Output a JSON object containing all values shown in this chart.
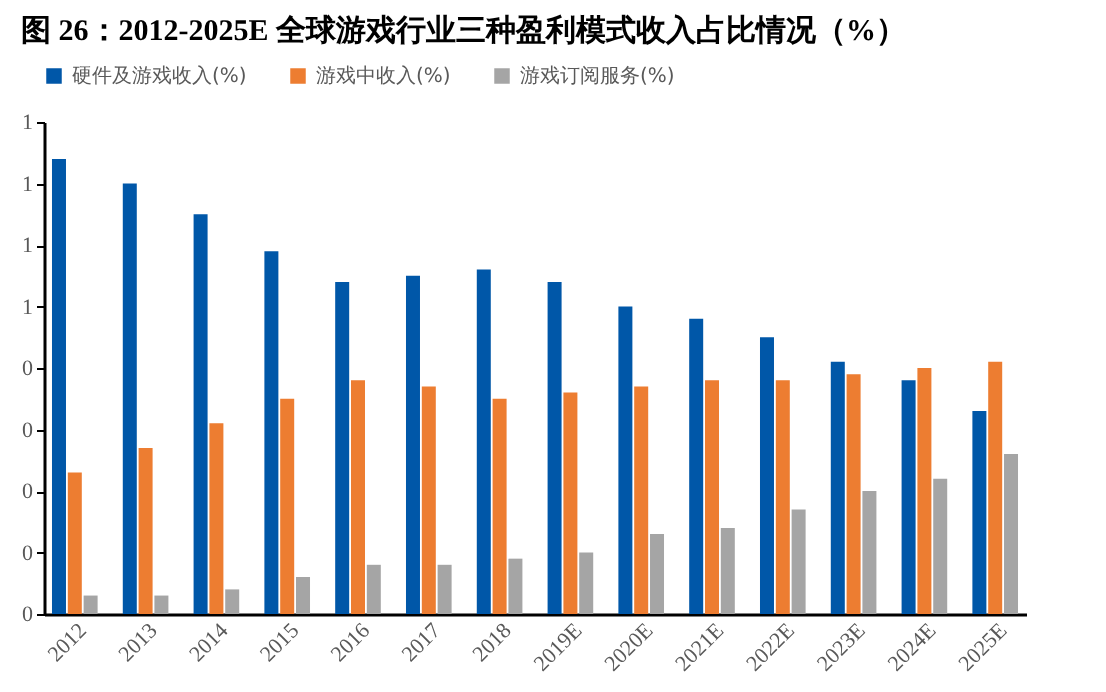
{
  "chart_data": {
    "type": "bar",
    "title": "图 26：2012-2025E 全球游戏行业三种盈利模式收入占比情况（%）",
    "categories": [
      "2012",
      "2013",
      "2014",
      "2015",
      "2016",
      "2017",
      "2018",
      "2019E",
      "2020E",
      "2021E",
      "2022E",
      "2023E",
      "2024E",
      "2025E"
    ],
    "series": [
      {
        "name": "硬件及游戏收入(%)",
        "color": "#0057a8",
        "values": [
          0.74,
          0.7,
          0.65,
          0.59,
          0.54,
          0.55,
          0.56,
          0.54,
          0.5,
          0.48,
          0.45,
          0.41,
          0.38,
          0.33
        ]
      },
      {
        "name": "游戏中收入(%)",
        "color": "#ed7d31",
        "values": [
          0.23,
          0.27,
          0.31,
          0.35,
          0.38,
          0.37,
          0.35,
          0.36,
          0.37,
          0.38,
          0.38,
          0.39,
          0.4,
          0.41
        ]
      },
      {
        "name": "游戏订阅服务(%)",
        "color": "#a5a5a5",
        "values": [
          0.03,
          0.03,
          0.04,
          0.06,
          0.08,
          0.08,
          0.09,
          0.1,
          0.13,
          0.14,
          0.17,
          0.2,
          0.22,
          0.26
        ]
      }
    ],
    "ylim": [
      0,
      0.8
    ],
    "yticks": [
      {
        "value": 0,
        "label": "0"
      },
      {
        "value": 0.1,
        "label": "0"
      },
      {
        "value": 0.2,
        "label": "0"
      },
      {
        "value": 0.3,
        "label": "0"
      },
      {
        "value": 0.4,
        "label": "0"
      },
      {
        "value": 0.5,
        "label": "1"
      },
      {
        "value": 0.6,
        "label": "1"
      },
      {
        "value": 0.7,
        "label": "1"
      },
      {
        "value": 0.8,
        "label": "1"
      }
    ],
    "grid": false,
    "legend": "top"
  }
}
